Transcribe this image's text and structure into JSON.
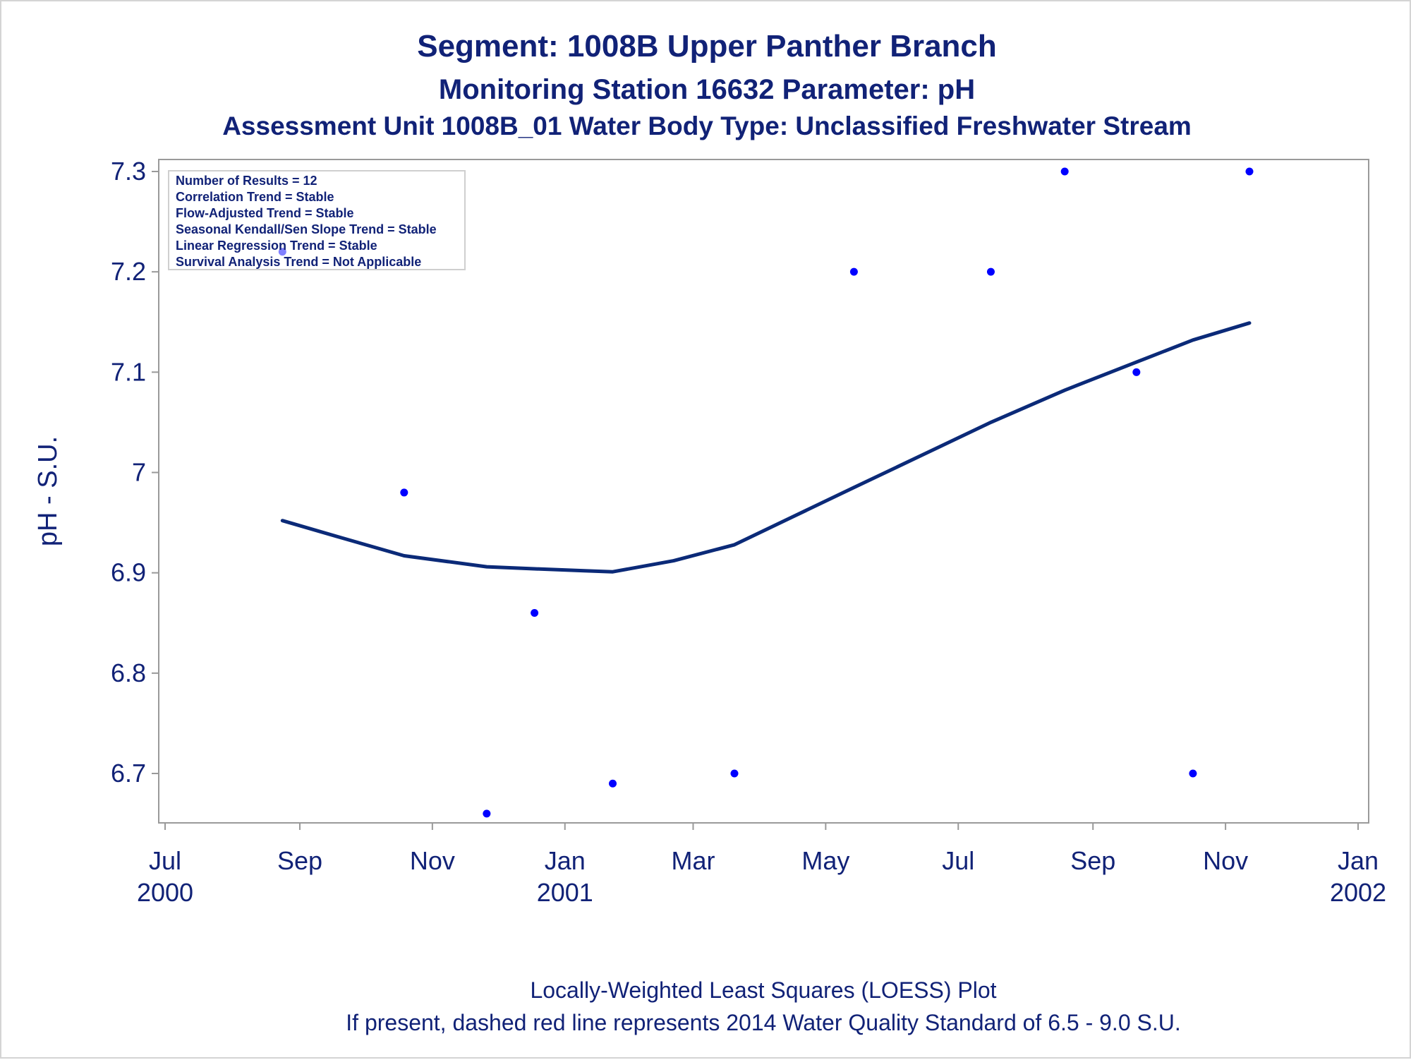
{
  "titles": {
    "line1": "Segment: 1008B  Upper Panther Branch",
    "line2": "Monitoring Station 16632 Parameter: pH",
    "line3": "Assessment Unit 1008B_01   Water Body Type: Unclassified Freshwater Stream"
  },
  "stats_box": {
    "lines": [
      "Number of Results = 12",
      "Correlation Trend = Stable",
      "Flow-Adjusted Trend = Stable",
      "Seasonal Kendall/Sen Slope Trend = Stable",
      "Linear Regression Trend = Stable",
      "Survival Analysis Trend = Not Applicable"
    ]
  },
  "footnotes": {
    "line1": "Locally-Weighted Least Squares (LOESS) Plot",
    "line2": "If present, dashed red line represents 2014 Water Quality Standard of 6.5 - 9.0 S.U."
  },
  "colors": {
    "text": "#112277",
    "points": "#0000ff",
    "loess": "#0b2a78",
    "axis": "#999999"
  },
  "chart_data": {
    "type": "scatter",
    "ylabel": "pH - S.U.",
    "xlabel": "",
    "ylim": [
      6.65,
      7.31
    ],
    "y_ticks": [
      "6.7",
      "6.8",
      "6.9",
      "7",
      "7.1",
      "7.2",
      "7.3"
    ],
    "xlim": [
      "2000-07-01",
      "2002-01-01"
    ],
    "x_ticks": [
      {
        "date": "2000-07-01",
        "label": "Jul",
        "year": "2000"
      },
      {
        "date": "2000-09-01",
        "label": "Sep",
        "year": ""
      },
      {
        "date": "2000-11-01",
        "label": "Nov",
        "year": ""
      },
      {
        "date": "2001-01-01",
        "label": "Jan",
        "year": "2001"
      },
      {
        "date": "2001-03-01",
        "label": "Mar",
        "year": ""
      },
      {
        "date": "2001-05-01",
        "label": "May",
        "year": ""
      },
      {
        "date": "2001-07-01",
        "label": "Jul",
        "year": ""
      },
      {
        "date": "2001-09-01",
        "label": "Sep",
        "year": ""
      },
      {
        "date": "2001-11-01",
        "label": "Nov",
        "year": ""
      },
      {
        "date": "2002-01-01",
        "label": "Jan",
        "year": "2002"
      }
    ],
    "series": [
      {
        "kind": "points",
        "points": [
          {
            "x": "2000-08-24",
            "y": 7.22
          },
          {
            "x": "2000-10-19",
            "y": 6.98
          },
          {
            "x": "2000-11-26",
            "y": 6.66
          },
          {
            "x": "2000-12-18",
            "y": 6.86
          },
          {
            "x": "2001-01-23",
            "y": 6.69
          },
          {
            "x": "2001-03-20",
            "y": 6.7
          },
          {
            "x": "2001-05-14",
            "y": 7.2
          },
          {
            "x": "2001-07-16",
            "y": 7.2
          },
          {
            "x": "2001-08-19",
            "y": 7.3
          },
          {
            "x": "2001-09-21",
            "y": 7.1
          },
          {
            "x": "2001-10-17",
            "y": 6.7
          },
          {
            "x": "2001-11-12",
            "y": 7.3
          }
        ]
      },
      {
        "kind": "loess",
        "points": [
          {
            "x": "2000-08-24",
            "y": 6.952
          },
          {
            "x": "2000-09-20",
            "y": 6.935
          },
          {
            "x": "2000-10-19",
            "y": 6.917
          },
          {
            "x": "2000-11-26",
            "y": 6.906
          },
          {
            "x": "2000-12-18",
            "y": 6.904
          },
          {
            "x": "2001-01-10",
            "y": 6.902
          },
          {
            "x": "2001-01-23",
            "y": 6.901
          },
          {
            "x": "2001-02-20",
            "y": 6.912
          },
          {
            "x": "2001-03-20",
            "y": 6.928
          },
          {
            "x": "2001-04-15",
            "y": 6.955
          },
          {
            "x": "2001-05-14",
            "y": 6.985
          },
          {
            "x": "2001-06-15",
            "y": 7.018
          },
          {
            "x": "2001-07-16",
            "y": 7.05
          },
          {
            "x": "2001-08-19",
            "y": 7.082
          },
          {
            "x": "2001-09-21",
            "y": 7.11
          },
          {
            "x": "2001-10-17",
            "y": 7.132
          },
          {
            "x": "2001-11-12",
            "y": 7.149
          }
        ]
      }
    ]
  }
}
